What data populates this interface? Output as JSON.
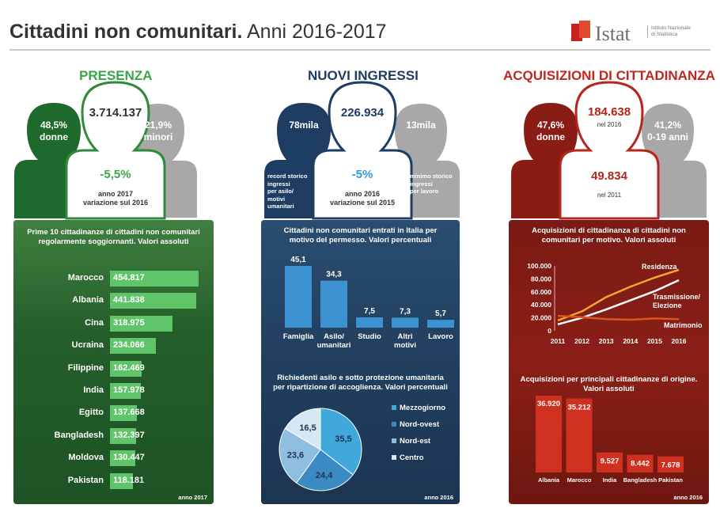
{
  "header": {
    "title_bold": "Cittadini non comunitari.",
    "title_rest": " Anni 2016-2017",
    "logo_word": "Istat",
    "logo_sub": "Istituto Nazionale di Statistica"
  },
  "colors": {
    "green": "#2f8a3a",
    "blue": "#1d3d63",
    "red": "#b5261d",
    "grey": "#a8a8a8"
  },
  "presenza": {
    "title": "PRESENZA",
    "total": "3.714.137",
    "left_value": "48,5%",
    "left_label": "donne",
    "right_value": "21,9%",
    "right_label": "minori",
    "change": "-5,5%",
    "change_note_1": "anno 2017",
    "change_note_2": "variazione sul 2016"
  },
  "nuovi": {
    "title": "NUOVI INGRESSI",
    "total": "226.934",
    "left_value": "78mila",
    "left_note": [
      "record storico",
      "ingressi",
      "per asilo/",
      "motivi",
      "umanitari"
    ],
    "right_value": "13mila",
    "right_note": [
      "minimo storico",
      "ingressi",
      "per lavoro"
    ],
    "change": "-5%",
    "change_note_1": "anno 2016",
    "change_note_2": "variazione sul 2015"
  },
  "acquisizioni": {
    "title": "ACQUISIZIONI DI CITTADINANZA",
    "total": "184.638",
    "total_note": "nel 2016",
    "left_value": "47,6%",
    "left_label": "donne",
    "right_value": "41,2%",
    "right_label": "0-19 anni",
    "second": "49.834",
    "second_note": "nel 2011"
  },
  "chart_data": [
    {
      "type": "bar",
      "orientation": "horizontal",
      "title": "Prime 10 cittadinanze di cittadini non comunitari regolarmente soggiornanti. Valori assoluti",
      "categories": [
        "Marocco",
        "Albania",
        "Cina",
        "Ucraina",
        "Filippine",
        "India",
        "Egitto",
        "Bangladesh",
        "Moldova",
        "Pakistan"
      ],
      "values": [
        454817,
        441838,
        318975,
        234066,
        162469,
        157978,
        137668,
        132397,
        130447,
        118181
      ],
      "labels": [
        "454.817",
        "441.838",
        "318.975",
        "234.066",
        "162.469",
        "157.978",
        "137.668",
        "132.397",
        "130.447",
        "118.181"
      ],
      "source": "anno 2017"
    },
    {
      "type": "bar",
      "title": "Cittadini non comunitari entrati in Italia per motivo del permesso. Valori percentuali",
      "categories": [
        "Famiglia",
        "Asilo/ umanitari",
        "Studio",
        "Altri motivi",
        "Lavoro"
      ],
      "values": [
        45.1,
        34.3,
        7.5,
        7.3,
        5.7
      ],
      "labels": [
        "45,1",
        "34,3",
        "7,5",
        "7,3",
        "5,7"
      ]
    },
    {
      "type": "pie",
      "title": "Richiedenti asilo e sotto protezione umanitaria per ripartizione di accoglienza. Valori percentuali",
      "categories": [
        "Mezzogiorno",
        "Nord-ovest",
        "Nord-est",
        "Centro"
      ],
      "values": [
        35.5,
        24.4,
        23.6,
        16.5
      ],
      "labels": [
        "35,5",
        "24,4",
        "23,6",
        "16,5"
      ],
      "colors": [
        "#41a8dc",
        "#3b8ac4",
        "#8fbde0",
        "#d6e7f4"
      ],
      "source": "anno 2016"
    },
    {
      "type": "line",
      "title": "Acquisizioni di cittadinanza di cittadini non comunitari per motivo. Valori assoluti",
      "x": [
        "2011",
        "2012",
        "2013",
        "2014",
        "2015",
        "2016"
      ],
      "ylim": [
        0,
        100000
      ],
      "yticks": [
        "100.000",
        "80.000",
        "60.000",
        "40.000",
        "20.000",
        "0"
      ],
      "series": [
        {
          "name": "Residenza",
          "values": [
            16000,
            30000,
            52000,
            68000,
            82000,
            94000
          ],
          "color": "#f0a830"
        },
        {
          "name": "Trasmissione/ Elezione",
          "values": [
            10000,
            20000,
            33000,
            47000,
            61000,
            78000
          ],
          "color": "#ffffff"
        },
        {
          "name": "Matrimonio",
          "values": [
            23000,
            21000,
            18000,
            17000,
            19000,
            18000
          ],
          "color": "#e0541f"
        }
      ]
    },
    {
      "type": "bar",
      "title": "Acquisizioni per principali cittadinanze di origine. Valori assoluti",
      "categories": [
        "Albania",
        "Marocco",
        "India",
        "Bangladesh",
        "Pakistan"
      ],
      "values": [
        36920,
        35212,
        9527,
        8442,
        7678
      ],
      "labels": [
        "36.920",
        "35.212",
        "9.527",
        "8.442",
        "7.678"
      ],
      "source": "anno 2016"
    }
  ]
}
